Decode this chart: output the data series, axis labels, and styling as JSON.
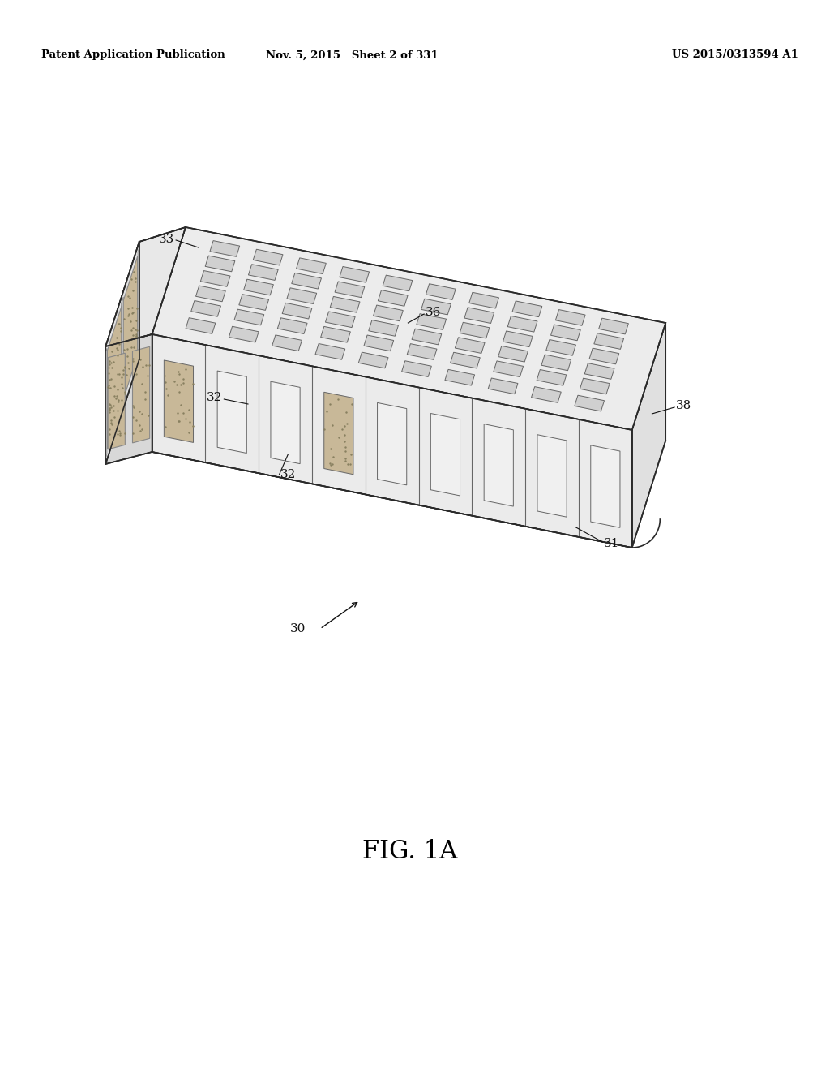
{
  "bg_color": "#ffffff",
  "header_left": "Patent Application Publication",
  "header_mid": "Nov. 5, 2015   Sheet 2 of 331",
  "header_right": "US 2015/0313594 A1",
  "fig_label": "FIG. 1A",
  "lc": "#2a2a2a",
  "slot_fc": "#d8d8d8",
  "slot_ec": "#555555",
  "top_fc": "#ececec",
  "front_fc": "#e0e0e0",
  "right_fc": "#e4e4e4",
  "left_fc": "#d0d0d0",
  "tissue_fc": "#c8b898",
  "tissue_dot": "#888060",
  "lfs": 11,
  "label_color": "#111111"
}
